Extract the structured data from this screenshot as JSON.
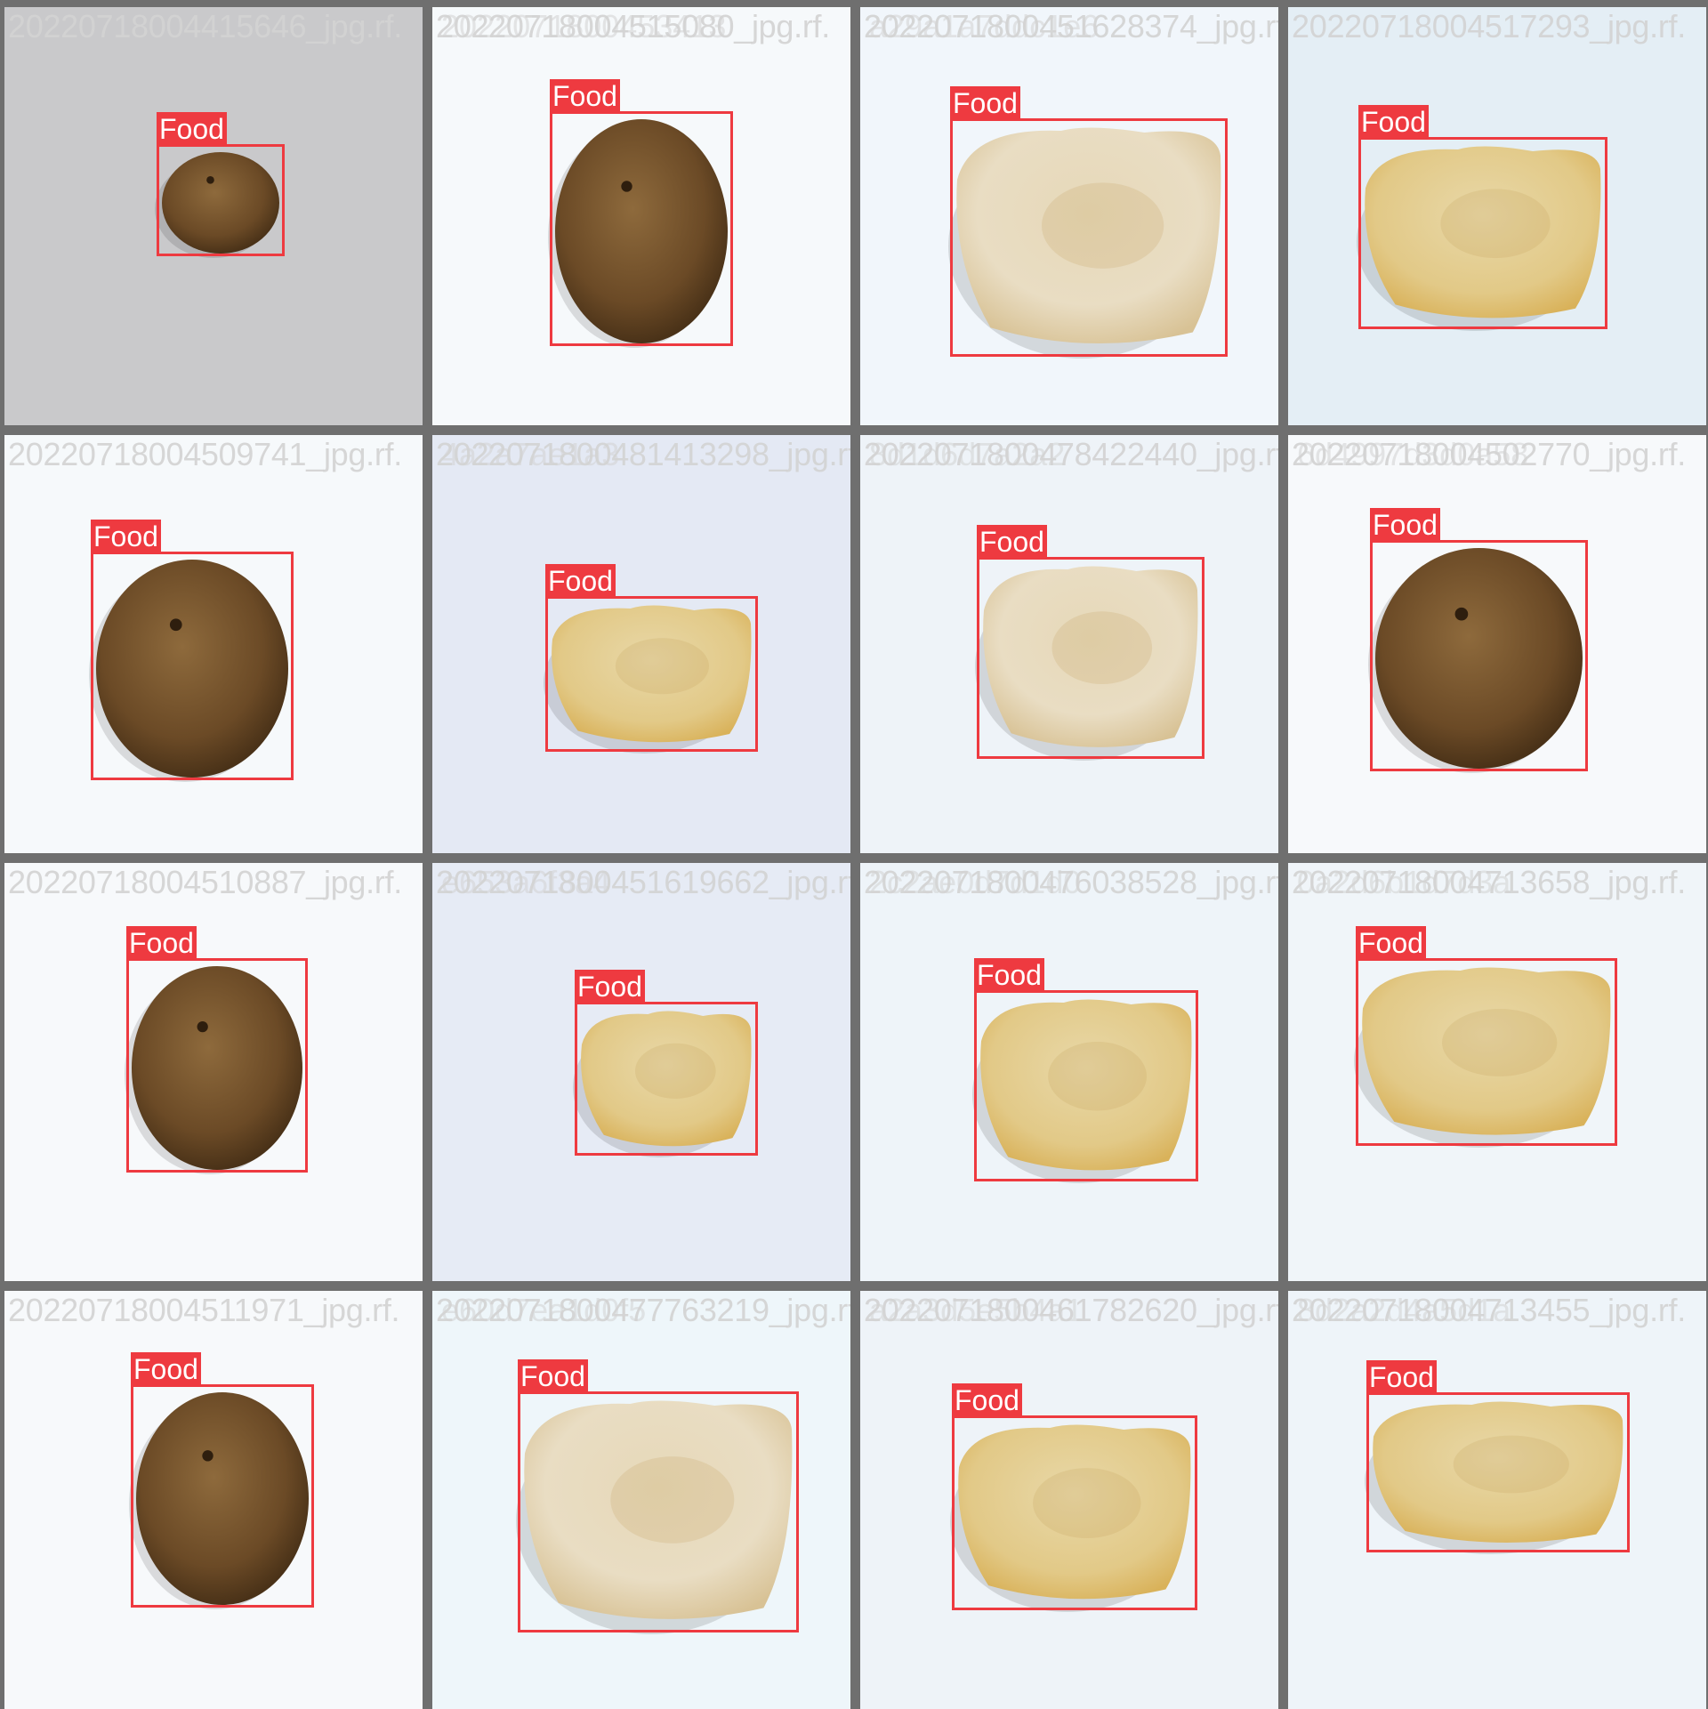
{
  "label_color": "#ee3a40",
  "tiles": [
    {
      "filename": "20220718004415646_jpg.rf.",
      "ghost": "",
      "label": "Food",
      "kind": "patty",
      "bg": "#c9c9cb"
    },
    {
      "filename": "20220718004515080_jpg.rf.",
      "ghost": "2022071800453413",
      "label": "Food",
      "kind": "patty",
      "bg": "#f6f9fb"
    },
    {
      "filename": "2022071800451628374_jpg.rf.",
      "ghost": "a29a1a7ddc1e6",
      "label": "Food",
      "kind": "pastel",
      "bg": "#f1f6fb"
    },
    {
      "filename": "20220718004517293_jpg.rf.",
      "ghost": "",
      "label": "Food",
      "kind": "pastel-yellow",
      "bg": "#e4eef5"
    },
    {
      "filename": "20220718004509741_jpg.rf.",
      "ghost": "",
      "label": "Food",
      "kind": "patty",
      "bg": "#f6f9fb"
    },
    {
      "filename": "2022071800481413298_jpg.rf.",
      "ghost": "4a2a7ae1a3",
      "label": "Food",
      "kind": "pastel-yellow",
      "bg": "#e4e9f4"
    },
    {
      "filename": "2022071800478422440_jpg.rf.",
      "ghost": "8d1d6d7a2a2",
      "label": "Food",
      "kind": "pastel",
      "bg": "#eef3f8"
    },
    {
      "filename": "20220718004502770_jpg.rf.",
      "ghost": "6d4997d3d0a58",
      "label": "Food",
      "kind": "patty",
      "bg": "#f7f9fb"
    },
    {
      "filename": "20220718004510887_jpg.rf.",
      "ghost": "",
      "label": "Food",
      "kind": "patty",
      "bg": "#f7f9fb"
    },
    {
      "filename": "2022071800451619662_jpg.rf.",
      "ghost": "e653a6f3a4",
      "label": "Food",
      "kind": "pastel-yellow",
      "bg": "#e6ebf5"
    },
    {
      "filename": "2022071800476038528_jpg.rf.",
      "ghost": "2c2ae0d7d1d0",
      "label": "Food",
      "kind": "pastel-yellow",
      "bg": "#eef4f9"
    },
    {
      "filename": "20220718004713658_jpg.rf.",
      "ghost": "0a2d6b1d7d3a",
      "label": "Food",
      "kind": "pastel-yellow",
      "bg": "#f0f5f9"
    },
    {
      "filename": "20220718004511971_jpg.rf.",
      "ghost": "",
      "label": "Food",
      "kind": "patty",
      "bg": "#f7f9fb"
    },
    {
      "filename": "2022071800477763219_jpg.rf.",
      "ghost": "e60d7ea1d0f5",
      "label": "Food",
      "kind": "pastel",
      "bg": "#eef6fa"
    },
    {
      "filename": "2022071800461782620_jpg.rf.",
      "ghost": "a2a3d5e5b4a1",
      "label": "Food",
      "kind": "pastel-yellow",
      "bg": "#eef3f8"
    },
    {
      "filename": "20220718004713455_jpg.rf.",
      "ghost": "8d2a2d4a5d1a",
      "label": "Food",
      "kind": "pastel-yellow",
      "bg": "#eef4f9"
    }
  ]
}
